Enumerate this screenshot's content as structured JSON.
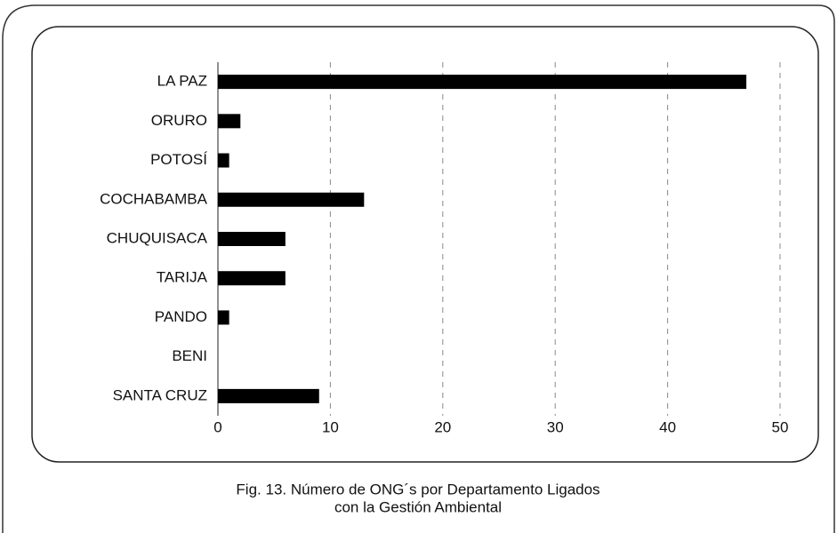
{
  "chart_data": {
    "type": "barh",
    "caption": [
      "Fig. 13.  Número de ONG´s  por Departamento Ligados",
      "con la Gestión Ambiental"
    ],
    "categories": [
      "LA PAZ",
      "ORURO",
      "POTOSÍ",
      "COCHABAMBA",
      "CHUQUISACA",
      "TARIJA",
      "PANDO",
      "BENI",
      "SANTA CRUZ"
    ],
    "values": [
      47,
      2,
      1,
      13,
      6,
      6,
      1,
      0,
      9
    ],
    "color": "#000000",
    "xlim": [
      0,
      50
    ],
    "xticks": [
      0,
      10,
      20,
      30,
      40,
      50
    ],
    "grid": true
  }
}
